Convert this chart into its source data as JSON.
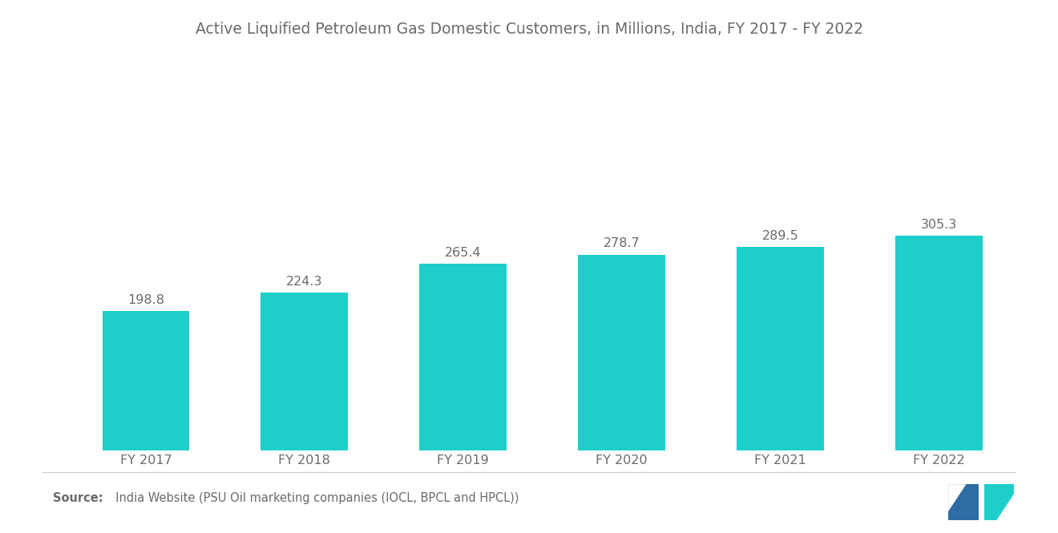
{
  "title": "Active Liquified Petroleum Gas Domestic Customers, in Millions, India, FY 2017 - FY 2022",
  "categories": [
    "FY 2017",
    "FY 2018",
    "FY 2019",
    "FY 2020",
    "FY 2021",
    "FY 2022"
  ],
  "values": [
    198.8,
    224.3,
    265.4,
    278.7,
    289.5,
    305.3
  ],
  "bar_color": "#1ECECA",
  "background_color": "#ffffff",
  "title_fontsize": 13.5,
  "tick_fontsize": 11.5,
  "value_fontsize": 11.5,
  "source_bold": "Source:",
  "source_text": "  India Website (PSU Oil marketing companies (IOCL, BPCL and HPCL))",
  "source_fontsize": 10.5,
  "ylim": [
    0,
    550
  ],
  "bar_width": 0.55,
  "text_color": "#6b6b6b",
  "logo_blue": "#2e6da4",
  "logo_teal": "#1ECECA"
}
